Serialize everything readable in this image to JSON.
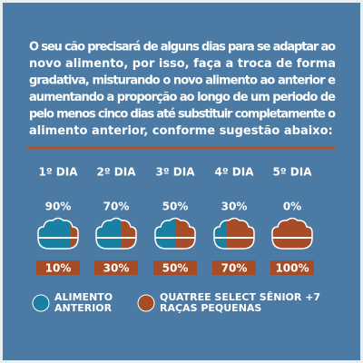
{
  "intro": {
    "lines": [
      "O seu cão precisará de alguns dias para se adaptar ao",
      "novo alimento, por isso, faça a troca de forma",
      "gradativa, misturando o novo alimento ao anterior e",
      "aumentando a proporção ao longo de um periodo de",
      "pelo menos cinco dias até substituir completamente o",
      "alimento anterior, conforme sugestão abaixo:"
    ]
  },
  "days": [
    {
      "label": "1º DIA",
      "previous": "90%",
      "new": "10%"
    },
    {
      "label": "2º DIA",
      "previous": "70%",
      "new": "30%"
    },
    {
      "label": "3º DIA",
      "previous": "50%",
      "new": "50%"
    },
    {
      "label": "4º DIA",
      "previous": "30%",
      "new": "70%"
    },
    {
      "label": "5º DIA",
      "previous": "0%",
      "new": "100%"
    }
  ],
  "legend": {
    "previous": [
      "ALIMENTO",
      "ANTERIOR"
    ],
    "new": [
      "QUATREE SELECT SÊNIOR +7",
      "RAÇAS PEQUENAS"
    ]
  }
}
